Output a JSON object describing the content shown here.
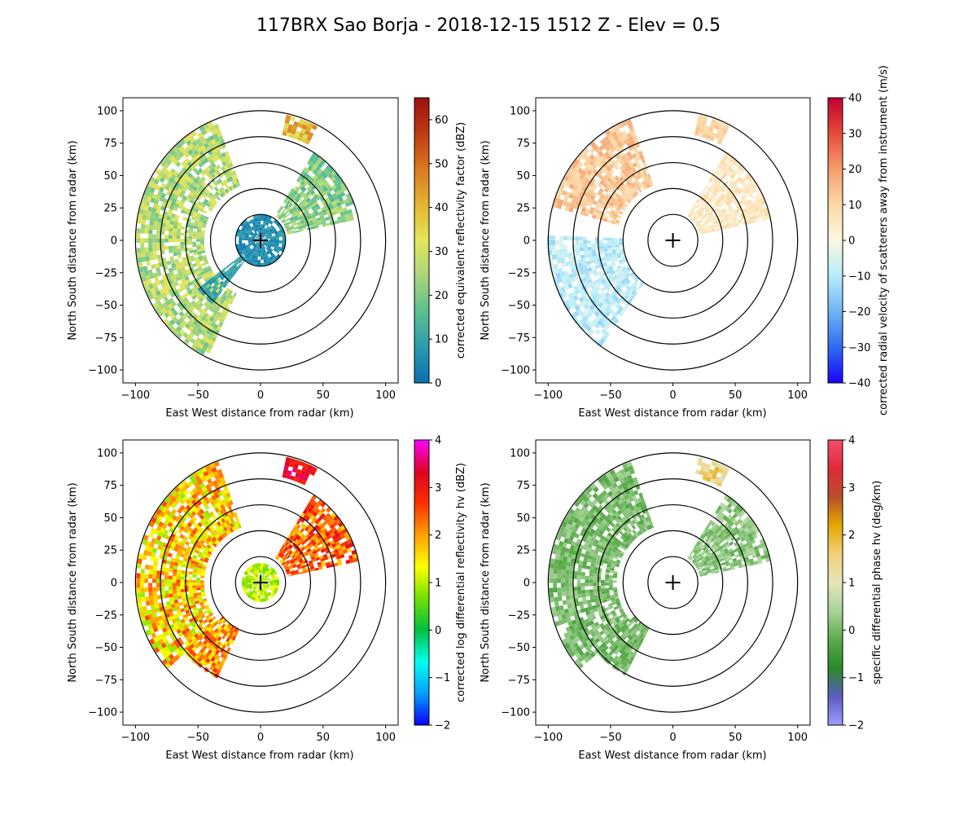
{
  "figure_title": "117BRX Sao Borja - 2018-12-15 1512 Z -  Elev = 0.5",
  "colors": {
    "ring": "#000000",
    "axis": "#000000",
    "background": "#ffffff"
  },
  "chart_data": [
    {
      "type": "heatmap",
      "field": "reflectivity",
      "xlabel": "East West distance from radar (km)",
      "ylabel": "North South distance from radar (km)",
      "xlim": [
        -110,
        110
      ],
      "ylim": [
        -110,
        110
      ],
      "xticks": [
        -100,
        -50,
        0,
        50,
        100
      ],
      "yticks": [
        -100,
        -75,
        -50,
        -25,
        0,
        25,
        50,
        75,
        100
      ],
      "range_rings_km": [
        20,
        40,
        60,
        80,
        100
      ],
      "colorbar": {
        "label": "corrected equivalent reflectivity factor (dBZ)",
        "range": [
          0,
          65
        ],
        "ticks": [
          0,
          10,
          20,
          30,
          40,
          50,
          60
        ],
        "colors": [
          "#0b6fb3",
          "#2a9bb0",
          "#5bbf8e",
          "#a8d67a",
          "#e5e65c",
          "#e3b431",
          "#d97a1e",
          "#bf3b12",
          "#9c0f0f"
        ]
      },
      "echo_regions": [
        {
          "name": "west-arc",
          "az_min": 205,
          "az_max": 338,
          "r_min": 45,
          "r_max": 98,
          "vmin": 18,
          "vmax": 34
        },
        {
          "name": "northeast-cell",
          "az_min": 32,
          "az_max": 78,
          "r_min": 22,
          "r_max": 78,
          "vmin": 14,
          "vmax": 28
        },
        {
          "name": "north-cell",
          "az_min": 12,
          "az_max": 26,
          "r_min": 83,
          "r_max": 97,
          "vmin": 30,
          "vmax": 48
        },
        {
          "name": "radar-clutter",
          "az_min": 0,
          "az_max": 360,
          "r_min": 0,
          "r_max": 18,
          "vmin": 2,
          "vmax": 10
        },
        {
          "name": "southwest-line",
          "az_min": 218,
          "az_max": 232,
          "r_min": 18,
          "r_max": 60,
          "vmin": 6,
          "vmax": 14
        }
      ]
    },
    {
      "type": "heatmap",
      "field": "velocity",
      "xlabel": "East West distance from radar (km)",
      "ylabel": "North South distance from radar (km)",
      "xlim": [
        -110,
        110
      ],
      "ylim": [
        -110,
        110
      ],
      "xticks": [
        -100,
        -50,
        0,
        50,
        100
      ],
      "yticks": [
        -100,
        -75,
        -50,
        -25,
        0,
        25,
        50,
        75,
        100
      ],
      "range_rings_km": [
        20,
        40,
        60,
        80,
        100
      ],
      "colorbar": {
        "label": "corrected radial velocity of scatterers away from instrument (m/s)",
        "range": [
          -40,
          40
        ],
        "ticks": [
          -40,
          -30,
          -20,
          -10,
          0,
          10,
          20,
          30,
          40
        ],
        "colors": [
          "#1a00ff",
          "#2f6cf0",
          "#6fb4f5",
          "#b5ecfa",
          "#fbf8e0",
          "#fbd9a6",
          "#f59d6e",
          "#e84a3a",
          "#c0002f"
        ]
      },
      "echo_regions": [
        {
          "name": "northwest-outbound",
          "az_min": 285,
          "az_max": 338,
          "r_min": 45,
          "r_max": 98,
          "vmin": 8,
          "vmax": 18
        },
        {
          "name": "southwest-inbound",
          "az_min": 215,
          "az_max": 272,
          "r_min": 40,
          "r_max": 98,
          "vmin": -14,
          "vmax": -4
        },
        {
          "name": "northeast-weak",
          "az_min": 32,
          "az_max": 78,
          "r_min": 22,
          "r_max": 78,
          "vmin": 2,
          "vmax": 10
        },
        {
          "name": "north-cell",
          "az_min": 12,
          "az_max": 26,
          "r_min": 83,
          "r_max": 97,
          "vmin": 6,
          "vmax": 14
        }
      ]
    },
    {
      "type": "heatmap",
      "field": "differential_reflectivity",
      "xlabel": "East West distance from radar (km)",
      "ylabel": "North South distance from radar (km)",
      "xlim": [
        -110,
        110
      ],
      "ylim": [
        -110,
        110
      ],
      "xticks": [
        -100,
        -50,
        0,
        50,
        100
      ],
      "yticks": [
        -100,
        -75,
        -50,
        -25,
        0,
        25,
        50,
        75,
        100
      ],
      "range_rings_km": [
        20,
        40,
        60,
        80,
        100
      ],
      "colorbar": {
        "label": "corrected log differential reflectivity hv (dBZ)",
        "range": [
          -2,
          4
        ],
        "ticks": [
          -2,
          -1,
          0,
          1,
          2,
          3,
          4
        ],
        "colors": [
          "#0a00ff",
          "#00a0ff",
          "#00ffee",
          "#00c040",
          "#70e000",
          "#ffff00",
          "#ffa000",
          "#ff3000",
          "#e00020",
          "#ff00ff"
        ]
      },
      "echo_regions": [
        {
          "name": "west-arc",
          "az_min": 228,
          "az_max": 338,
          "r_min": 45,
          "r_max": 98,
          "vmin": 0.8,
          "vmax": 2.6
        },
        {
          "name": "southwest-band",
          "az_min": 205,
          "az_max": 228,
          "r_min": 40,
          "r_max": 80,
          "vmin": 1.2,
          "vmax": 2.8
        },
        {
          "name": "northeast-cell",
          "az_min": 32,
          "az_max": 78,
          "r_min": 22,
          "r_max": 78,
          "vmin": 1.6,
          "vmax": 3.2
        },
        {
          "name": "north-cell",
          "az_min": 12,
          "az_max": 26,
          "r_min": 83,
          "r_max": 97,
          "vmin": 2.8,
          "vmax": 3.6
        },
        {
          "name": "radar-clutter",
          "az_min": 0,
          "az_max": 360,
          "r_min": 0,
          "r_max": 14,
          "vmin": 0.6,
          "vmax": 1.4
        }
      ]
    },
    {
      "type": "heatmap",
      "field": "specific_differential_phase",
      "xlabel": "East West distance from radar (km)",
      "ylabel": "North South distance from radar (km)",
      "xlim": [
        -110,
        110
      ],
      "ylim": [
        -110,
        110
      ],
      "xticks": [
        -100,
        -50,
        0,
        50,
        100
      ],
      "yticks": [
        -100,
        -75,
        -50,
        -25,
        0,
        25,
        50,
        75,
        100
      ],
      "range_rings_km": [
        20,
        40,
        60,
        80,
        100
      ],
      "colorbar": {
        "label": "specific differential phase hv (deg/km)",
        "range": [
          -2,
          4
        ],
        "ticks": [
          -2,
          -1,
          0,
          1,
          2,
          3,
          4
        ],
        "colors": [
          "#9d9dff",
          "#5c5cc0",
          "#2a8a2a",
          "#5aab4a",
          "#a7d39a",
          "#e3e6b8",
          "#f3d07a",
          "#e3a800",
          "#b8502a",
          "#e02a3a",
          "#f25068"
        ]
      },
      "echo_regions": [
        {
          "name": "west-arc",
          "az_min": 228,
          "az_max": 338,
          "r_min": 45,
          "r_max": 98,
          "vmin": -0.3,
          "vmax": 0.4
        },
        {
          "name": "southwest-band",
          "az_min": 208,
          "az_max": 228,
          "r_min": 40,
          "r_max": 80,
          "vmin": -0.3,
          "vmax": 0.3
        },
        {
          "name": "northeast-cell",
          "az_min": 32,
          "az_max": 78,
          "r_min": 22,
          "r_max": 78,
          "vmin": -0.2,
          "vmax": 0.6
        },
        {
          "name": "north-cell",
          "az_min": 12,
          "az_max": 26,
          "r_min": 83,
          "r_max": 97,
          "vmin": 0.8,
          "vmax": 2.2
        }
      ]
    }
  ]
}
